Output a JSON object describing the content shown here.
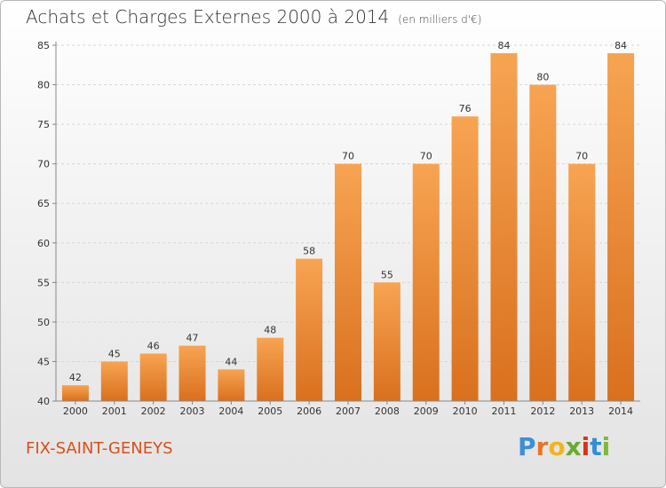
{
  "header": {
    "title": "Achats et Charges Externes 2000 à 2014",
    "unit": "(en milliers d'€)"
  },
  "footer": {
    "commune": "FIX-SAINT-GENEYS",
    "logo_text": "Proxiti",
    "logo_letters": [
      {
        "ch": "P",
        "color": "#3a8fd8"
      },
      {
        "ch": "r",
        "color": "#e8742a"
      },
      {
        "ch": "o",
        "color": "#f2b51a"
      },
      {
        "ch": "x",
        "color": "#6aab2e"
      },
      {
        "ch": "i",
        "color": "#d9331d"
      },
      {
        "ch": "t",
        "color": "#2f8fd6"
      },
      {
        "ch": "i",
        "color": "#7cba3a"
      }
    ]
  },
  "chart_data": {
    "type": "bar",
    "categories": [
      "2000",
      "2001",
      "2002",
      "2003",
      "2004",
      "2005",
      "2006",
      "2007",
      "2008",
      "2009",
      "2010",
      "2011",
      "2012",
      "2013",
      "2014"
    ],
    "values": [
      42,
      45,
      46,
      47,
      44,
      48,
      58,
      70,
      55,
      70,
      76,
      84,
      80,
      70,
      84
    ],
    "ylim": [
      40,
      85
    ],
    "yticks": [
      40,
      45,
      50,
      55,
      60,
      65,
      70,
      75,
      80,
      85
    ],
    "grid": true,
    "bar_color_top": "#f7a452",
    "bar_color_bottom": "#d9701e"
  }
}
